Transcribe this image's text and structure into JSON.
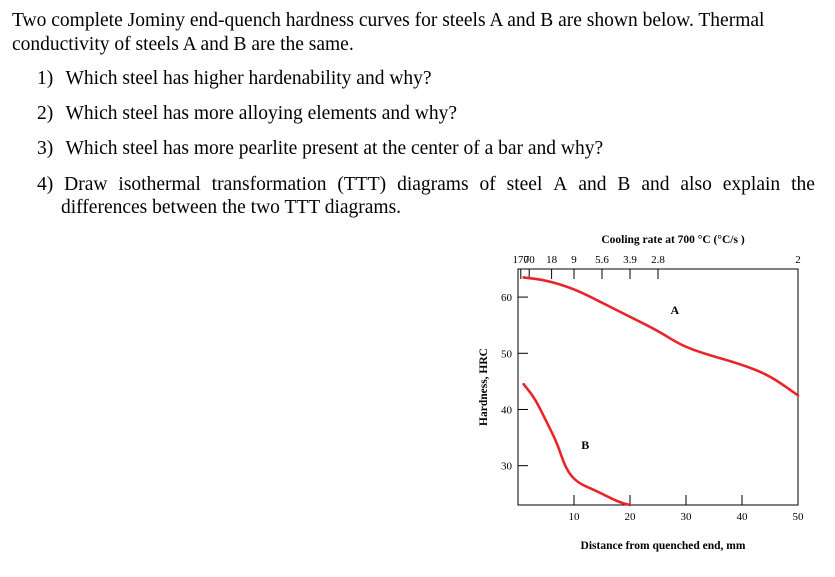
{
  "intro": "Two complete Jominy end-quench hardness curves for steels A and B are shown below. Thermal conductivity of steels A and B are the same.",
  "questions": [
    {
      "num": "1)",
      "text": "Which steel has higher hardenability and why?"
    },
    {
      "num": "2)",
      "text": "Which steel has more alloying elements and why?"
    },
    {
      "num": "3)",
      "text": "Which steel has more pearlite present at the center of a bar and why?"
    },
    {
      "num": "4)",
      "text_line1": [
        "Draw",
        "isothermal",
        "transformation",
        "(TTT)",
        "diagrams",
        "of",
        "steel",
        "A",
        "and",
        "B",
        "and",
        "also",
        "explain",
        "the"
      ],
      "text_line2": "differences between the two TTT diagrams."
    }
  ],
  "chart_data": {
    "type": "line",
    "top_axis_label": "Cooling rate at 700 °C (°C/s )",
    "top_ticks": [
      {
        "label": "170",
        "x": 0.5
      },
      {
        "label": "70",
        "x": 2.0
      },
      {
        "label": "18",
        "x": 6.0
      },
      {
        "label": "9",
        "x": 10.0
      },
      {
        "label": "5.6",
        "x": 15.0
      },
      {
        "label": "3.9",
        "x": 20.0
      },
      {
        "label": "2.8",
        "x": 25.0
      },
      {
        "label": "2",
        "x": 50.0
      }
    ],
    "xlabel": "Distance from quenched end, mm",
    "ylabel": "Hardness, HRC",
    "xlim": [
      0,
      50
    ],
    "ylim": [
      23,
      65
    ],
    "x_ticks": [
      10,
      20,
      30,
      40,
      50
    ],
    "y_ticks": [
      30,
      40,
      50,
      60
    ],
    "color": "#e8262a",
    "series": [
      {
        "name": "A",
        "label_at": [
          28,
          57
        ],
        "points": [
          [
            1,
            63.5
          ],
          [
            5,
            63
          ],
          [
            10,
            61.5
          ],
          [
            15,
            59
          ],
          [
            20,
            56.5
          ],
          [
            25,
            54
          ],
          [
            29,
            51.5
          ],
          [
            33,
            50
          ],
          [
            40,
            48
          ],
          [
            45,
            46
          ],
          [
            50,
            42.5
          ]
        ]
      },
      {
        "name": "B",
        "label_at": [
          12,
          33
        ],
        "points": [
          [
            1,
            44.5
          ],
          [
            3,
            42
          ],
          [
            5,
            38
          ],
          [
            7,
            34
          ],
          [
            8.5,
            29.5
          ],
          [
            10.5,
            27
          ],
          [
            14,
            25.5
          ],
          [
            18,
            23.5
          ],
          [
            20,
            23
          ]
        ]
      }
    ]
  }
}
